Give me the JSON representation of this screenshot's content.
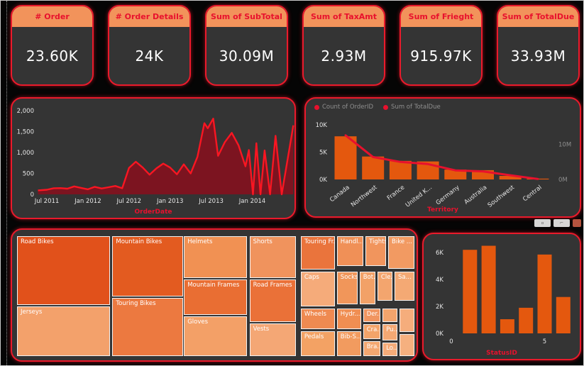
{
  "colors": {
    "panel_bg": "#343434",
    "panel_border": "#ea1a2b",
    "card_header": "#f2935b",
    "title_red": "#e8112d",
    "bar_orange": "#e4580e",
    "area_line": "#f91622",
    "area_fill": "#7c1420",
    "axis_text": "#e6e6e6",
    "legend_text": "#8f8f8f"
  },
  "cards": [
    {
      "title": "# Order",
      "value": "23.60K"
    },
    {
      "title": "# Order Details",
      "value": "24K"
    },
    {
      "title": "Sum of SubTotal",
      "value": "30.09M"
    },
    {
      "title": "Sum of TaxAmt",
      "value": "2.93M"
    },
    {
      "title": "Sum of Frieght",
      "value": "915.97K"
    },
    {
      "title": "Sum of TotalDue",
      "value": "33.93M"
    }
  ],
  "mini_toolbar": {
    "buttons": [
      "filter-button",
      "focus-mode-button",
      "more-options-button"
    ]
  },
  "chart_data": [
    {
      "type": "area",
      "title": "",
      "xlabel": "OrderDate",
      "ylabel": "",
      "ylim": [
        0,
        2000
      ],
      "grid": false,
      "yticks": [
        {
          "v": 0,
          "label": "0"
        },
        {
          "v": 500,
          "label": "500"
        },
        {
          "v": 1000,
          "label": "1,000"
        },
        {
          "v": 1500,
          "label": "1,500"
        },
        {
          "v": 2000,
          "label": "2,000"
        }
      ],
      "xticks": [
        {
          "t": 0,
          "label": "Jul 2011"
        },
        {
          "t": 6,
          "label": "Jan 2012"
        },
        {
          "t": 12,
          "label": "Jul 2012"
        },
        {
          "t": 18,
          "label": "Jan 2013"
        },
        {
          "t": 24,
          "label": "Jul 2013"
        },
        {
          "t": 30,
          "label": "Jan 2014"
        }
      ],
      "points": [
        [
          -1.3,
          95
        ],
        [
          0,
          110
        ],
        [
          1,
          145
        ],
        [
          2,
          150
        ],
        [
          3,
          135
        ],
        [
          4,
          190
        ],
        [
          5,
          155
        ],
        [
          6,
          120
        ],
        [
          7,
          180
        ],
        [
          8,
          140
        ],
        [
          9,
          170
        ],
        [
          10,
          200
        ],
        [
          11,
          145
        ],
        [
          12,
          630
        ],
        [
          13,
          780
        ],
        [
          14,
          640
        ],
        [
          15,
          470
        ],
        [
          16,
          620
        ],
        [
          17,
          735
        ],
        [
          18,
          640
        ],
        [
          19,
          480
        ],
        [
          20,
          717
        ],
        [
          21,
          500
        ],
        [
          22,
          900
        ],
        [
          23,
          1700
        ],
        [
          23.5,
          1580
        ],
        [
          24.3,
          1810
        ],
        [
          25,
          920
        ],
        [
          26,
          1250
        ],
        [
          27,
          1470
        ],
        [
          28,
          1170
        ],
        [
          29,
          670
        ],
        [
          29.5,
          1060
        ],
        [
          30.1,
          0
        ],
        [
          30.6,
          1220
        ],
        [
          31.2,
          0
        ],
        [
          31.8,
          1050
        ],
        [
          32.6,
          0
        ],
        [
          33.4,
          1400
        ],
        [
          34.3,
          0
        ],
        [
          36,
          1650
        ]
      ]
    },
    {
      "type": "combo-bar-line",
      "title": "",
      "xlabel": "Territory",
      "legend": [
        "Count of OrderID",
        "Sum of TotalDue"
      ],
      "categories": [
        "Canada",
        "Northwest",
        "France",
        "United K...",
        "Germany",
        "Australia",
        "Southwest",
        "Central"
      ],
      "series": [
        {
          "name": "Count of OrderID",
          "axis": "left",
          "unit": "K",
          "values": [
            7.9,
            4.2,
            3.4,
            3.3,
            1.8,
            1.7,
            0.65,
            0.15
          ]
        },
        {
          "name": "Sum of TotalDue",
          "axis": "right",
          "unit": "M",
          "values": [
            12.6,
            6.4,
            5.0,
            4.4,
            2.6,
            2.3,
            1.2,
            0.15
          ]
        }
      ],
      "left_ticks": [
        {
          "v": 0,
          "label": "0K"
        },
        {
          "v": 5,
          "label": "5K"
        },
        {
          "v": 10,
          "label": "10K"
        }
      ],
      "right_ticks": [
        {
          "v": 0,
          "label": "0M"
        },
        {
          "v": 10,
          "label": "10M"
        }
      ],
      "left_max": 10,
      "right_max": 15.6
    },
    {
      "type": "treemap",
      "tiles": [
        {
          "label": "Road Bikes",
          "l": 0,
          "t": 0,
          "w": 23.4,
          "h": 57.4,
          "color": "#e1511b"
        },
        {
          "label": "Jerseys",
          "l": 0,
          "t": 58.6,
          "w": 23.4,
          "h": 41.4,
          "color": "#f3a16b"
        },
        {
          "label": "Mountain Bikes",
          "l": 24.0,
          "t": 0,
          "w": 17.7,
          "h": 50.3,
          "color": "#e35b20"
        },
        {
          "label": "Touring Bikes",
          "l": 24.0,
          "t": 51.5,
          "w": 17.7,
          "h": 48.5,
          "color": "#ec7940"
        },
        {
          "label": "Helmets",
          "l": 42.0,
          "t": 0,
          "w": 15.9,
          "h": 34.9,
          "color": "#f19153"
        },
        {
          "label": "Mountain Frames",
          "l": 42.0,
          "t": 36.1,
          "w": 15.9,
          "h": 29.6,
          "color": "#e96e33"
        },
        {
          "label": "Gloves",
          "l": 42.0,
          "t": 66.9,
          "w": 15.9,
          "h": 33.1,
          "color": "#f3a067"
        },
        {
          "label": "Shorts",
          "l": 58.5,
          "t": 0,
          "w": 11.6,
          "h": 34.9,
          "color": "#f0935d"
        },
        {
          "label": "Road Frames",
          "l": 58.5,
          "t": 36.1,
          "w": 11.6,
          "h": 35.5,
          "color": "#ea7138"
        },
        {
          "label": "Vests",
          "l": 58.5,
          "t": 72.8,
          "w": 11.6,
          "h": 27.2,
          "color": "#f4a775"
        },
        {
          "label": "Touring Fr...",
          "l": 71.4,
          "t": 0,
          "w": 8.6,
          "h": 27.8,
          "color": "#ea743c"
        },
        {
          "label": "Caps",
          "l": 71.4,
          "t": 29.6,
          "w": 8.6,
          "h": 29.0,
          "color": "#f5ab7a"
        },
        {
          "label": "Wheels",
          "l": 71.4,
          "t": 60.4,
          "w": 8.6,
          "h": 17.2,
          "color": "#ef8a51"
        },
        {
          "label": "Pedals",
          "l": 71.4,
          "t": 79.3,
          "w": 8.6,
          "h": 20.7,
          "color": "#f3a264"
        },
        {
          "label": "Handl...",
          "l": 80.5,
          "t": 0,
          "w": 6.6,
          "h": 24.9,
          "color": "#f09057"
        },
        {
          "label": "Tights",
          "l": 87.7,
          "t": 0,
          "w": 5.2,
          "h": 24.9,
          "color": "#f1955d"
        },
        {
          "label": "Bike ...",
          "l": 93.4,
          "t": 0,
          "w": 6.6,
          "h": 27.2,
          "color": "#f29a62"
        },
        {
          "label": "Socks",
          "l": 80.5,
          "t": 29.6,
          "w": 5.2,
          "h": 27.2,
          "color": "#f1965a"
        },
        {
          "label": "Bot...",
          "l": 86.2,
          "t": 29.6,
          "w": 3.9,
          "h": 27.2,
          "color": "#f2a167"
        },
        {
          "label": "Cle...",
          "l": 90.7,
          "t": 29.6,
          "w": 3.8,
          "h": 24.3,
          "color": "#f3a56e"
        },
        {
          "label": "Sa...",
          "l": 95.0,
          "t": 29.6,
          "w": 5.0,
          "h": 24.3,
          "color": "#f4a974"
        },
        {
          "label": "Hydr...",
          "l": 80.5,
          "t": 60.4,
          "w": 6.1,
          "h": 17.2,
          "color": "#f08e52"
        },
        {
          "label": "Bib-S...",
          "l": 80.5,
          "t": 79.3,
          "w": 6.1,
          "h": 20.7,
          "color": "#f29b5f"
        },
        {
          "label": "Der...",
          "l": 87.1,
          "t": 60.4,
          "w": 4.3,
          "h": 11.2,
          "color": "#f19560"
        },
        {
          "label": "Cra...",
          "l": 87.1,
          "t": 73.4,
          "w": 4.3,
          "h": 12.4,
          "color": "#f3a469"
        },
        {
          "label": "Bra...",
          "l": 87.1,
          "t": 87.6,
          "w": 4.3,
          "h": 12.4,
          "color": "#f4a770"
        },
        {
          "label": "Pu...",
          "l": 92.0,
          "t": 73.4,
          "w": 3.8,
          "h": 13.6,
          "color": "#f4a873"
        },
        {
          "label": "Lo...",
          "l": 92.0,
          "t": 88.8,
          "w": 3.8,
          "h": 11.2,
          "color": "#f5ac79"
        },
        {
          "label": "",
          "l": 92.0,
          "t": 60.4,
          "w": 3.8,
          "h": 11.2,
          "color": "#f3a46c"
        },
        {
          "label": "",
          "l": 96.2,
          "t": 60.4,
          "w": 3.8,
          "h": 19.5,
          "color": "#f5ad7c"
        },
        {
          "label": "",
          "l": 96.2,
          "t": 81.7,
          "w": 3.8,
          "h": 18.3,
          "color": "#f5b07f"
        }
      ]
    },
    {
      "type": "bar",
      "title": "",
      "xlabel": "StatusID",
      "ylim": [
        0,
        7
      ],
      "x": [
        1,
        2,
        3,
        4,
        5,
        6
      ],
      "values": [
        6.2,
        6.5,
        1.05,
        1.9,
        5.85,
        2.7
      ],
      "yticks": [
        {
          "v": 0,
          "label": "0K"
        },
        {
          "v": 2,
          "label": "2K"
        },
        {
          "v": 4,
          "label": "4K"
        },
        {
          "v": 6,
          "label": "6K"
        }
      ],
      "xticks": [
        {
          "x": 0,
          "label": "0"
        },
        {
          "x": 5,
          "label": "5"
        }
      ]
    }
  ]
}
